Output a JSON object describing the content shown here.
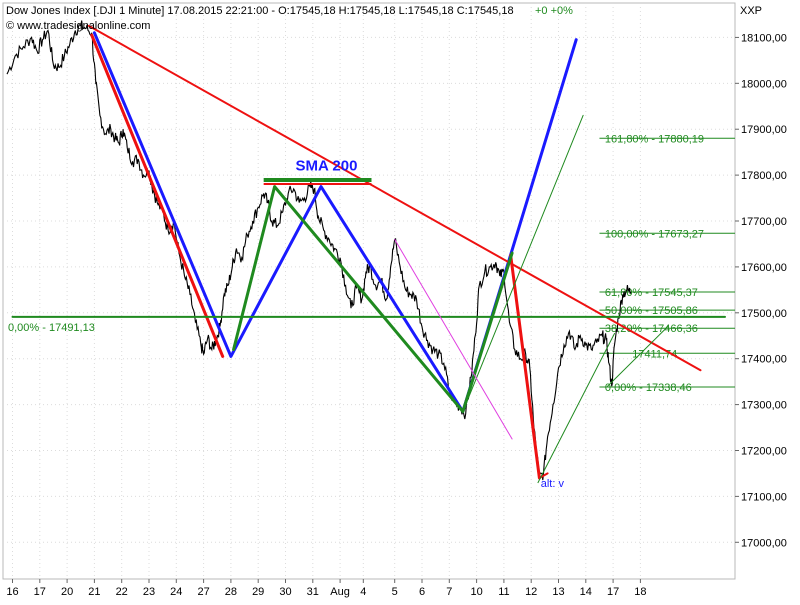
{
  "header": {
    "title_line": "Dow Jones Index [.DJI  1 Minute]  17.08.2015 22:21:00 - O:17545,18 H:17545,18 L:17545,18 C:17545,18",
    "change": "+0 +0%",
    "watermark": "© www.tradesignalonline.com",
    "currency": "XXP"
  },
  "colors": {
    "price": "#000000",
    "blue_pattern": "#1a1aff",
    "red_pattern": "#ee1111",
    "green_pattern": "#1f8a1f",
    "fib_text": "#1f8a1f",
    "magenta": "#e040e0",
    "sma_text": "#1a1aff",
    "change_text": "#1f8a1f",
    "alt_text": "#1a1aff"
  },
  "chart_data": {
    "type": "line",
    "title": "Dow Jones Index [.DJI  1 Minute]",
    "ylim": [
      16920,
      18175
    ],
    "y_ticks": [
      17000,
      17100,
      17200,
      17300,
      17400,
      17500,
      17600,
      17700,
      17800,
      17900,
      18000,
      18100
    ],
    "y_tick_labels": [
      "17000,00",
      "17100,00",
      "17200,00",
      "17300,00",
      "17400,00",
      "17500,00",
      "17600,00",
      "17700,00",
      "17800,00",
      "17900,00",
      "18000,00",
      "18100,00"
    ],
    "x_range": [
      0,
      26.1
    ],
    "x_ticks": [
      {
        "x": 0,
        "label": "16"
      },
      {
        "x": 1,
        "label": "17"
      },
      {
        "x": 2,
        "label": "20"
      },
      {
        "x": 3,
        "label": "21"
      },
      {
        "x": 4,
        "label": "22"
      },
      {
        "x": 5,
        "label": "23"
      },
      {
        "x": 6,
        "label": "24"
      },
      {
        "x": 7,
        "label": "27"
      },
      {
        "x": 8,
        "label": "28"
      },
      {
        "x": 9,
        "label": "29"
      },
      {
        "x": 10,
        "label": "30"
      },
      {
        "x": 11,
        "label": "31"
      },
      {
        "x": 12,
        "label": "Aug"
      },
      {
        "x": 12.85,
        "label": "4"
      },
      {
        "x": 14,
        "label": "5"
      },
      {
        "x": 15,
        "label": "6"
      },
      {
        "x": 16,
        "label": "7"
      },
      {
        "x": 17,
        "label": "10"
      },
      {
        "x": 18,
        "label": "11"
      },
      {
        "x": 19,
        "label": "12"
      },
      {
        "x": 20,
        "label": "13"
      },
      {
        "x": 21,
        "label": "14"
      },
      {
        "x": 22,
        "label": "17"
      },
      {
        "x": 23,
        "label": "18"
      }
    ],
    "series": [
      {
        "values": [
          [
            -0.2,
            18020
          ],
          [
            0.1,
            18060
          ],
          [
            0.4,
            18080
          ],
          [
            0.7,
            18100
          ],
          [
            0.9,
            18070
          ],
          [
            1.1,
            18095
          ],
          [
            1.3,
            18115
          ],
          [
            1.5,
            18040
          ],
          [
            1.7,
            18035
          ],
          [
            1.9,
            18060
          ],
          [
            2.1,
            18085
          ],
          [
            2.3,
            18115
          ],
          [
            2.5,
            18125
          ],
          [
            2.7,
            18120
          ],
          [
            2.9,
            18110
          ],
          [
            3.05,
            18000
          ],
          [
            3.2,
            17930
          ],
          [
            3.4,
            17890
          ],
          [
            3.6,
            17900
          ],
          [
            3.75,
            17880
          ],
          [
            3.9,
            17870
          ],
          [
            4.05,
            17900
          ],
          [
            4.2,
            17860
          ],
          [
            4.4,
            17830
          ],
          [
            4.6,
            17835
          ],
          [
            4.8,
            17800
          ],
          [
            5.0,
            17810
          ],
          [
            5.1,
            17780
          ],
          [
            5.3,
            17740
          ],
          [
            5.5,
            17720
          ],
          [
            5.7,
            17680
          ],
          [
            5.9,
            17700
          ],
          [
            6.1,
            17630
          ],
          [
            6.3,
            17580
          ],
          [
            6.5,
            17540
          ],
          [
            6.7,
            17480
          ],
          [
            6.9,
            17430
          ],
          [
            7.0,
            17410
          ],
          [
            7.15,
            17445
          ],
          [
            7.3,
            17420
          ],
          [
            7.45,
            17440
          ],
          [
            7.6,
            17470
          ],
          [
            7.75,
            17540
          ],
          [
            7.9,
            17560
          ],
          [
            8.05,
            17600
          ],
          [
            8.2,
            17640
          ],
          [
            8.4,
            17620
          ],
          [
            8.6,
            17670
          ],
          [
            8.8,
            17700
          ],
          [
            9.0,
            17730
          ],
          [
            9.2,
            17760
          ],
          [
            9.35,
            17740
          ],
          [
            9.5,
            17700
          ],
          [
            9.7,
            17690
          ],
          [
            9.9,
            17720
          ],
          [
            10.1,
            17760
          ],
          [
            10.3,
            17770
          ],
          [
            10.5,
            17740
          ],
          [
            10.7,
            17750
          ],
          [
            10.9,
            17775
          ],
          [
            11.05,
            17770
          ],
          [
            11.2,
            17710
          ],
          [
            11.4,
            17680
          ],
          [
            11.6,
            17660
          ],
          [
            11.8,
            17640
          ],
          [
            12.0,
            17620
          ],
          [
            12.2,
            17560
          ],
          [
            12.4,
            17510
          ],
          [
            12.6,
            17555
          ],
          [
            12.8,
            17530
          ],
          [
            12.95,
            17590
          ],
          [
            13.1,
            17600
          ],
          [
            13.3,
            17560
          ],
          [
            13.5,
            17570
          ],
          [
            13.7,
            17530
          ],
          [
            13.85,
            17600
          ],
          [
            14.0,
            17660
          ],
          [
            14.2,
            17600
          ],
          [
            14.4,
            17550
          ],
          [
            14.6,
            17540
          ],
          [
            14.8,
            17530
          ],
          [
            15.0,
            17470
          ],
          [
            15.2,
            17440
          ],
          [
            15.4,
            17420
          ],
          [
            15.6,
            17410
          ],
          [
            15.8,
            17390
          ],
          [
            16.0,
            17330
          ],
          [
            16.2,
            17305
          ],
          [
            16.4,
            17295
          ],
          [
            16.6,
            17280
          ],
          [
            16.8,
            17360
          ],
          [
            16.95,
            17450
          ],
          [
            17.1,
            17560
          ],
          [
            17.3,
            17590
          ],
          [
            17.5,
            17600
          ],
          [
            17.7,
            17610
          ],
          [
            17.85,
            17580
          ],
          [
            18.0,
            17590
          ],
          [
            18.2,
            17480
          ],
          [
            18.4,
            17420
          ],
          [
            18.6,
            17400
          ],
          [
            18.8,
            17410
          ],
          [
            18.95,
            17380
          ],
          [
            19.1,
            17250
          ],
          [
            19.3,
            17140
          ],
          [
            19.45,
            17150
          ],
          [
            19.6,
            17230
          ],
          [
            19.8,
            17300
          ],
          [
            20.0,
            17380
          ],
          [
            20.2,
            17430
          ],
          [
            20.4,
            17460
          ],
          [
            20.6,
            17420
          ],
          [
            20.8,
            17450
          ],
          [
            21.0,
            17430
          ],
          [
            21.2,
            17420
          ],
          [
            21.4,
            17435
          ],
          [
            21.6,
            17450
          ],
          [
            21.75,
            17440
          ],
          [
            21.85,
            17390
          ],
          [
            21.95,
            17340
          ],
          [
            22.05,
            17430
          ],
          [
            22.2,
            17490
          ],
          [
            22.35,
            17540
          ],
          [
            22.5,
            17550
          ],
          [
            22.65,
            17545
          ]
        ]
      }
    ],
    "pattern_lines": [
      {
        "kind": "blue",
        "points": [
          [
            3.0,
            18110
          ],
          [
            8.0,
            17405
          ],
          [
            11.3,
            17775
          ],
          [
            16.5,
            17285
          ],
          [
            20.65,
            18095
          ]
        ],
        "width": 3
      },
      {
        "kind": "red",
        "points": [
          [
            2.9,
            18105
          ],
          [
            7.7,
            17405
          ]
        ],
        "width": 3
      },
      {
        "kind": "red",
        "points": [
          [
            18.25,
            17625
          ],
          [
            19.3,
            17140
          ]
        ],
        "width": 3
      },
      {
        "kind": "red",
        "points": [
          [
            2.8,
            18125
          ],
          [
            25.2,
            17375
          ]
        ],
        "width": 2
      },
      {
        "kind": "red",
        "points": [
          [
            19.3,
            17140
          ],
          [
            19.6,
            17150
          ]
        ],
        "width": 2
      },
      {
        "kind": "green",
        "points": [
          [
            8.1,
            17420
          ],
          [
            9.6,
            17775
          ],
          [
            16.5,
            17285
          ],
          [
            18.3,
            17630
          ]
        ],
        "width": 3
      },
      {
        "kind": "green",
        "points": [
          [
            16.5,
            17285
          ],
          [
            20.9,
            17930
          ]
        ],
        "width": 1
      },
      {
        "kind": "green",
        "points": [
          [
            19.25,
            17130
          ],
          [
            22.05,
            17455
          ]
        ],
        "width": 1
      },
      {
        "kind": "green",
        "points": [
          [
            21.8,
            17340
          ],
          [
            24.0,
            17470
          ]
        ],
        "width": 1
      },
      {
        "kind": "green",
        "points": [
          [
            0,
            17491.13
          ],
          [
            26.1,
            17491.13
          ]
        ],
        "width": 2
      },
      {
        "kind": "magenta",
        "points": [
          [
            14.0,
            17660
          ],
          [
            18.3,
            17225
          ]
        ],
        "width": 1
      }
    ],
    "sma_bar": {
      "x1": 9.2,
      "x2": 13.15,
      "y": 17785,
      "label": "SMA 200",
      "label_x": 11.5,
      "label_y": 17810
    },
    "fib_levels": [
      {
        "value": 17880.19,
        "label": "161,80% - 17880,19",
        "x_start": 21.7
      },
      {
        "value": 17673.27,
        "label": "100,00% - 17673,27",
        "x_start": 21.7
      },
      {
        "value": 17545.37,
        "label": "61,80% - 17545,37",
        "x_start": 21.7
      },
      {
        "value": 17505.86,
        "label": "50,00% - 17505,86",
        "x_start": 21.7
      },
      {
        "value": 17466.36,
        "label": "38,20% - 17466,36",
        "x_start": 21.7
      },
      {
        "value": 17411.74,
        "label": "17411,74",
        "x_start": 22.7
      },
      {
        "value": 17338.46,
        "label": "0,00% - 17338,46",
        "x_start": 21.7
      }
    ],
    "left_level": {
      "value": 17491.13,
      "label": "0,00% - 17491,13"
    },
    "annotations": [
      {
        "text": "alt: v",
        "x": 19.35,
        "y": 17120
      }
    ]
  }
}
